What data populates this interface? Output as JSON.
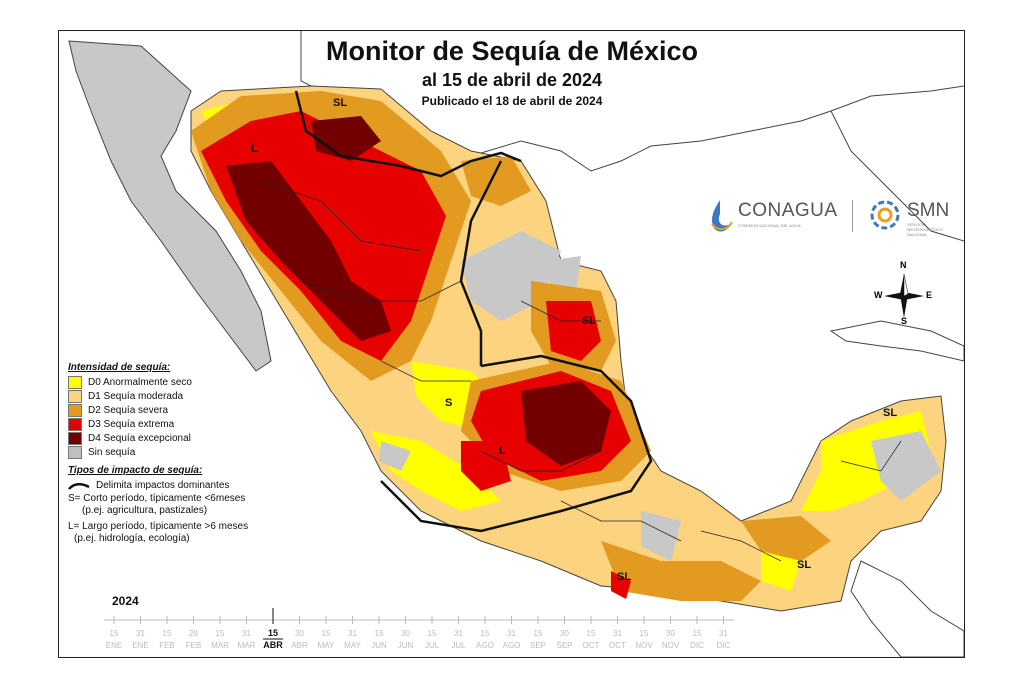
{
  "title": "Monitor de Sequía de México",
  "subtitle": "al 15 de abril de 2024",
  "published": "Publicado el 18 de abril de 2024",
  "legend": {
    "intensity_header": "Intensidad de sequía:",
    "items": [
      {
        "label": "D0 Anormalmente seco",
        "color": "#ffff00"
      },
      {
        "label": "D1 Sequía moderada",
        "color": "#fcd37f"
      },
      {
        "label": "D2 Sequía severa",
        "color": "#e29a21"
      },
      {
        "label": "D3 Sequía extrema",
        "color": "#e60000"
      },
      {
        "label": "D4 Sequía excepcional",
        "color": "#730000"
      },
      {
        "label": "Sin sequía",
        "color": "#bfbfbf"
      }
    ],
    "impact_header": "Tipos de impacto de sequía:",
    "impact_line": "Delimita impactos dominantes",
    "short_term": "S= Corto período, típicamente <6meses",
    "short_examples": "(p.ej. agricultura, pastizales)",
    "long_term": "L= Largo período, típicamente >6 meses",
    "long_examples": "(p.ej. hidrología, ecología)"
  },
  "map_labels": {
    "sl_northwest": "SL",
    "l_sonora": "L",
    "sl_northeast": "SL",
    "l_center": "L",
    "s_center": "S",
    "sl_yucatan": "SL",
    "sl_chiapas": "SL",
    "sl_oaxaca": "SL"
  },
  "compass": {
    "n": "N",
    "s": "S",
    "e": "E",
    "w": "W"
  },
  "logos": {
    "conagua": "CONAGUA",
    "conagua_sub": "COMISIÓN NACIONAL DEL AGUA",
    "smn": "SMN",
    "smn_sub": "SERVICIO METEOROLÓGICO NACIONAL"
  },
  "timeline": {
    "year": "2024",
    "current_day": "15",
    "current_month": "ABR",
    "days": [
      "15",
      "31",
      "15",
      "29",
      "15",
      "31",
      "15",
      "30",
      "15",
      "31",
      "15",
      "30",
      "15",
      "31",
      "15",
      "31",
      "15",
      "30",
      "15",
      "31",
      "15",
      "30",
      "15",
      "31"
    ],
    "months": [
      "ENE",
      "ENE",
      "FEB",
      "FEB",
      "MAR",
      "MAR",
      "ABR",
      "ABR",
      "MAY",
      "MAY",
      "JUN",
      "JUN",
      "JUL",
      "JUL",
      "AGO",
      "AGO",
      "SEP",
      "SEP",
      "OCT",
      "OCT",
      "NOV",
      "NOV",
      "DIC",
      "DIC"
    ],
    "current_index": 6
  },
  "colors": {
    "land_other": "#c8c8c8",
    "border": "#222222"
  }
}
